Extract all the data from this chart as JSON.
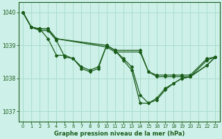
{
  "title": "Graphe pression niveau de la mer (hPa)",
  "background_color": "#cdf0e8",
  "grid_color": "#aaddcc",
  "line_color": "#1a5c1a",
  "xlim": [
    -0.5,
    23.5
  ],
  "ylim": [
    1036.7,
    1040.3
  ],
  "yticks": [
    1037,
    1038,
    1039,
    1040
  ],
  "xticks": [
    0,
    1,
    2,
    3,
    4,
    5,
    6,
    7,
    8,
    9,
    10,
    11,
    12,
    13,
    14,
    15,
    16,
    17,
    18,
    19,
    20,
    21,
    22,
    23
  ],
  "series1_x": [
    0,
    1,
    2,
    3,
    4,
    10,
    11,
    14,
    15,
    16,
    17,
    18,
    19,
    20,
    22,
    23
  ],
  "series1_y": [
    1040.0,
    1039.55,
    1039.5,
    1039.5,
    1039.2,
    1039.0,
    1038.85,
    1038.85,
    1038.2,
    1038.1,
    1038.1,
    1038.1,
    1038.1,
    1038.1,
    1038.6,
    1038.65
  ],
  "series2_x": [
    0,
    1,
    2,
    3,
    4,
    10,
    11,
    14,
    15,
    16,
    17,
    18,
    19,
    20,
    22,
    23
  ],
  "series2_y": [
    1040.0,
    1039.55,
    1039.5,
    1039.5,
    1039.2,
    1038.95,
    1038.8,
    1038.8,
    1038.2,
    1038.05,
    1038.05,
    1038.05,
    1038.05,
    1038.05,
    1038.55,
    1038.65
  ],
  "series3_x": [
    0,
    1,
    2,
    3,
    4,
    5,
    6,
    7,
    8,
    9,
    10,
    11,
    12,
    13,
    14,
    15,
    16,
    17,
    18,
    19,
    20,
    22,
    23
  ],
  "series3_y": [
    1040.0,
    1039.55,
    1039.5,
    1039.2,
    1038.7,
    1038.7,
    1038.6,
    1038.35,
    1038.25,
    1038.35,
    1039.0,
    1038.85,
    1038.6,
    1038.35,
    1037.5,
    1037.25,
    1037.4,
    1037.7,
    1037.85,
    1038.0,
    1038.05,
    1038.4,
    1038.65
  ],
  "series4_x": [
    0,
    1,
    2,
    3,
    4,
    5,
    6,
    7,
    8,
    9,
    10,
    11,
    12,
    13,
    14,
    15,
    16,
    17,
    18,
    19,
    20,
    22,
    23
  ],
  "series4_y": [
    1040.0,
    1039.55,
    1039.45,
    1039.45,
    1039.15,
    1038.65,
    1038.6,
    1038.3,
    1038.2,
    1038.3,
    1039.0,
    1038.85,
    1038.55,
    1038.25,
    1037.25,
    1037.25,
    1037.35,
    1037.65,
    1037.85,
    1038.0,
    1038.05,
    1038.4,
    1038.65
  ]
}
